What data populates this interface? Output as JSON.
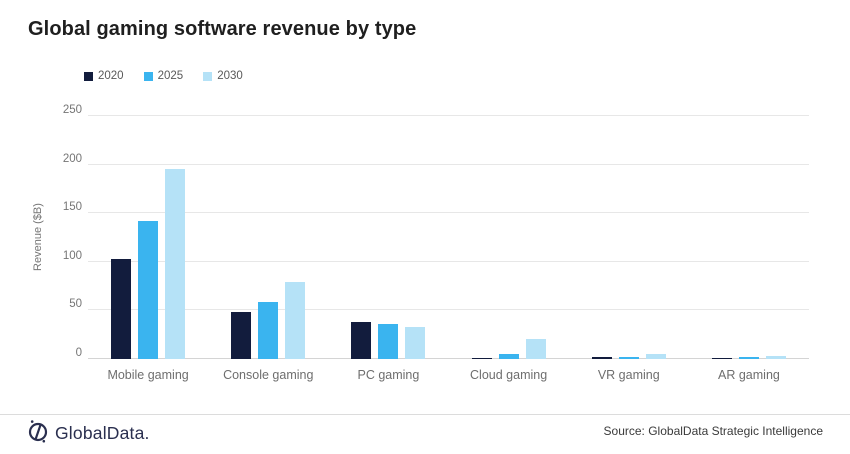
{
  "title": "Global gaming software revenue by type",
  "chart_data": {
    "type": "bar",
    "title": "Global gaming software revenue by type",
    "xlabel": "",
    "ylabel": "Revenue ($B)",
    "ylim": [
      0,
      250
    ],
    "yticks": [
      0,
      50,
      100,
      150,
      200,
      250
    ],
    "grid": true,
    "legend_position": "top-left",
    "categories": [
      "Mobile gaming",
      "Console gaming",
      "PC gaming",
      "Cloud gaming",
      "VR gaming",
      "AR gaming"
    ],
    "series": [
      {
        "name": "2020",
        "color": "#121c3d",
        "values": [
          103,
          48,
          38,
          1,
          2,
          1.5
        ]
      },
      {
        "name": "2025",
        "color": "#3ab4ef",
        "values": [
          142,
          59,
          36,
          5,
          2.5,
          2.5
        ]
      },
      {
        "name": "2030",
        "color": "#b5e2f7",
        "values": [
          195,
          79,
          33,
          21,
          5,
          3
        ]
      }
    ]
  },
  "footer": {
    "brand": "GlobalData.",
    "logo_icon": "globaldata-compass-icon",
    "source": "Source: GlobalData Strategic Intelligence"
  },
  "colors": {
    "background": "#ffffff",
    "title_text": "#1f1f1f",
    "axis_text": "#757575",
    "category_text": "#6e6e6e",
    "legend_text": "#595959",
    "gridline": "#e7e7e7",
    "baseline": "#d4d4d4",
    "divider": "#dcdcdc",
    "brand_navy": "#2a2f4f",
    "source_text": "#3a3a3a"
  }
}
